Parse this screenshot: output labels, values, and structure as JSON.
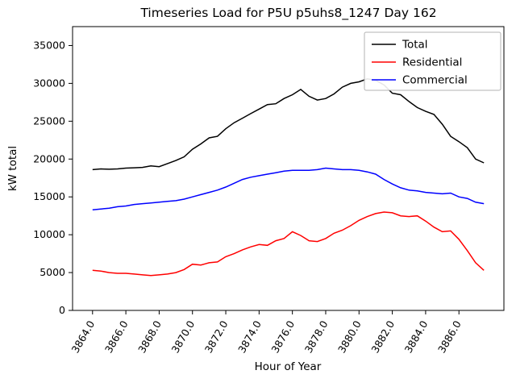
{
  "chart_data": {
    "type": "line",
    "title": "Timeseries Load for P5U p5uhs8_1247  Day 162",
    "xlabel": "Hour of Year",
    "ylabel": "kW total",
    "xlim": [
      3862.8,
      3888.7
    ],
    "ylim": [
      0,
      37500
    ],
    "grid": false,
    "legend_position": "upper right",
    "xticks": [
      3864,
      3866,
      3868,
      3870,
      3872,
      3874,
      3876,
      3878,
      3880,
      3882,
      3884,
      3886
    ],
    "xtick_labels": [
      "3864.0",
      "3866.0",
      "3868.0",
      "3870.0",
      "3872.0",
      "3874.0",
      "3876.0",
      "3878.0",
      "3880.0",
      "3882.0",
      "3884.0",
      "3886.0"
    ],
    "yticks": [
      0,
      5000,
      10000,
      15000,
      20000,
      25000,
      30000,
      35000
    ],
    "x": [
      3864.0,
      3864.5,
      3865.0,
      3865.5,
      3866.0,
      3866.5,
      3867.0,
      3867.5,
      3868.0,
      3868.5,
      3869.0,
      3869.5,
      3870.0,
      3870.5,
      3871.0,
      3871.5,
      3872.0,
      3872.5,
      3873.0,
      3873.5,
      3874.0,
      3874.5,
      3875.0,
      3875.5,
      3876.0,
      3876.5,
      3877.0,
      3877.5,
      3878.0,
      3878.5,
      3879.0,
      3879.5,
      3880.0,
      3880.5,
      3881.0,
      3881.5,
      3882.0,
      3882.5,
      3883.0,
      3883.5,
      3884.0,
      3884.5,
      3885.0,
      3885.5,
      3886.0,
      3886.5,
      3887.0,
      3887.5
    ],
    "series": [
      {
        "name": "Total",
        "color": "#000000",
        "values": [
          18600,
          18700,
          18650,
          18700,
          18800,
          18850,
          18900,
          19100,
          19000,
          19400,
          19800,
          20300,
          21300,
          22000,
          22800,
          23000,
          24000,
          24800,
          25400,
          26000,
          26600,
          27200,
          27300,
          28000,
          28500,
          29200,
          28300,
          27800,
          28000,
          28600,
          29500,
          30000,
          30200,
          30600,
          30400,
          29800,
          28700,
          28500,
          27600,
          26800,
          26300,
          25900,
          24600,
          23000,
          22300,
          21500,
          20000,
          19500
        ]
      },
      {
        "name": "Residential",
        "color": "#ff0000",
        "values": [
          5300,
          5200,
          5000,
          4900,
          4900,
          4800,
          4700,
          4600,
          4700,
          4800,
          5000,
          5400,
          6100,
          6000,
          6300,
          6400,
          7100,
          7500,
          8000,
          8400,
          8700,
          8600,
          9200,
          9500,
          10400,
          9900,
          9200,
          9100,
          9500,
          10200,
          10600,
          11200,
          11900,
          12400,
          12800,
          13000,
          12900,
          12500,
          12400,
          12500,
          11800,
          11000,
          10400,
          10500,
          9400,
          7900,
          6300,
          5300
        ]
      },
      {
        "name": "Commercial",
        "color": "#0000ff",
        "values": [
          13300,
          13400,
          13500,
          13700,
          13800,
          14000,
          14100,
          14200,
          14300,
          14400,
          14500,
          14700,
          15000,
          15300,
          15600,
          15900,
          16300,
          16800,
          17300,
          17600,
          17800,
          18000,
          18200,
          18400,
          18500,
          18500,
          18500,
          18600,
          18800,
          18700,
          18600,
          18600,
          18500,
          18300,
          18000,
          17300,
          16700,
          16200,
          15900,
          15800,
          15600,
          15500,
          15400,
          15500,
          15000,
          14800,
          14300,
          14100
        ]
      }
    ]
  }
}
